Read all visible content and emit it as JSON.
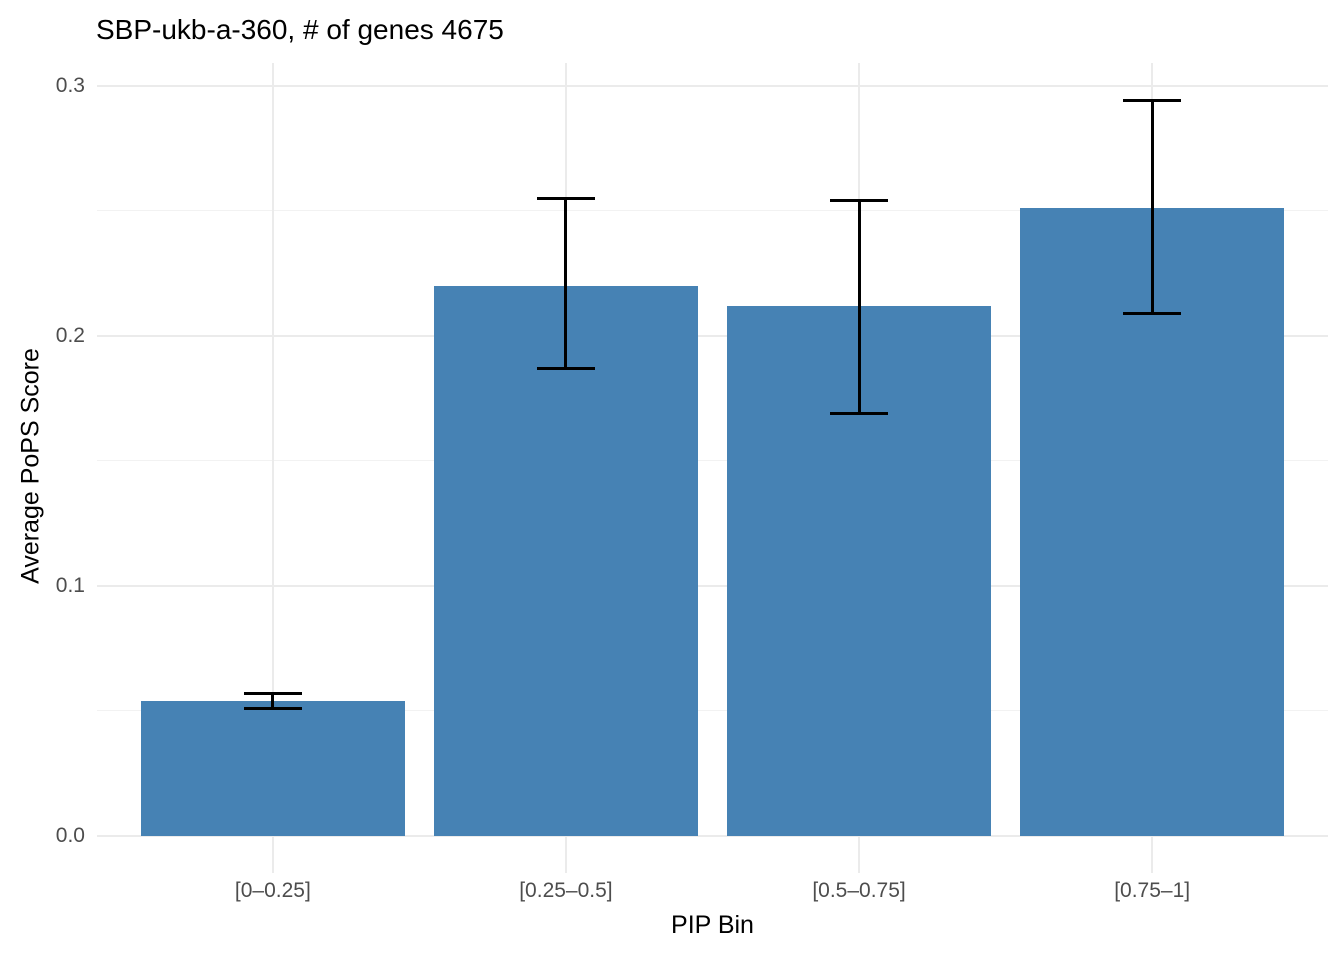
{
  "chart_data": {
    "type": "bar",
    "title": "SBP-ukb-a-360, # of genes 4675",
    "xlabel": "PIP Bin",
    "ylabel": "Average PoPS Score",
    "categories": [
      "[0–0.25]",
      "[0.25–0.5]",
      "[0.5–0.75]",
      "[0.75–1]"
    ],
    "values": [
      0.054,
      0.22,
      0.212,
      0.251
    ],
    "error_low": [
      0.051,
      0.187,
      0.169,
      0.209
    ],
    "error_high": [
      0.057,
      0.255,
      0.254,
      0.294
    ],
    "ylim": [
      -0.015,
      0.309
    ],
    "yticks": [
      0.0,
      0.1,
      0.2,
      0.3
    ],
    "ytick_labels": [
      "0.0",
      "0.1",
      "0.2",
      "0.3"
    ],
    "yticks_minor": [
      0.05,
      0.15,
      0.25
    ],
    "grid": true,
    "legend": "none",
    "colors": {
      "bar": "#4682B4",
      "errorbar": "#000000",
      "grid_major": "#EBEBEB",
      "grid_minor": "#F2F2F2",
      "axis_text": "#4D4D4D",
      "title_text": "#000000",
      "background": "#FFFFFF"
    }
  }
}
